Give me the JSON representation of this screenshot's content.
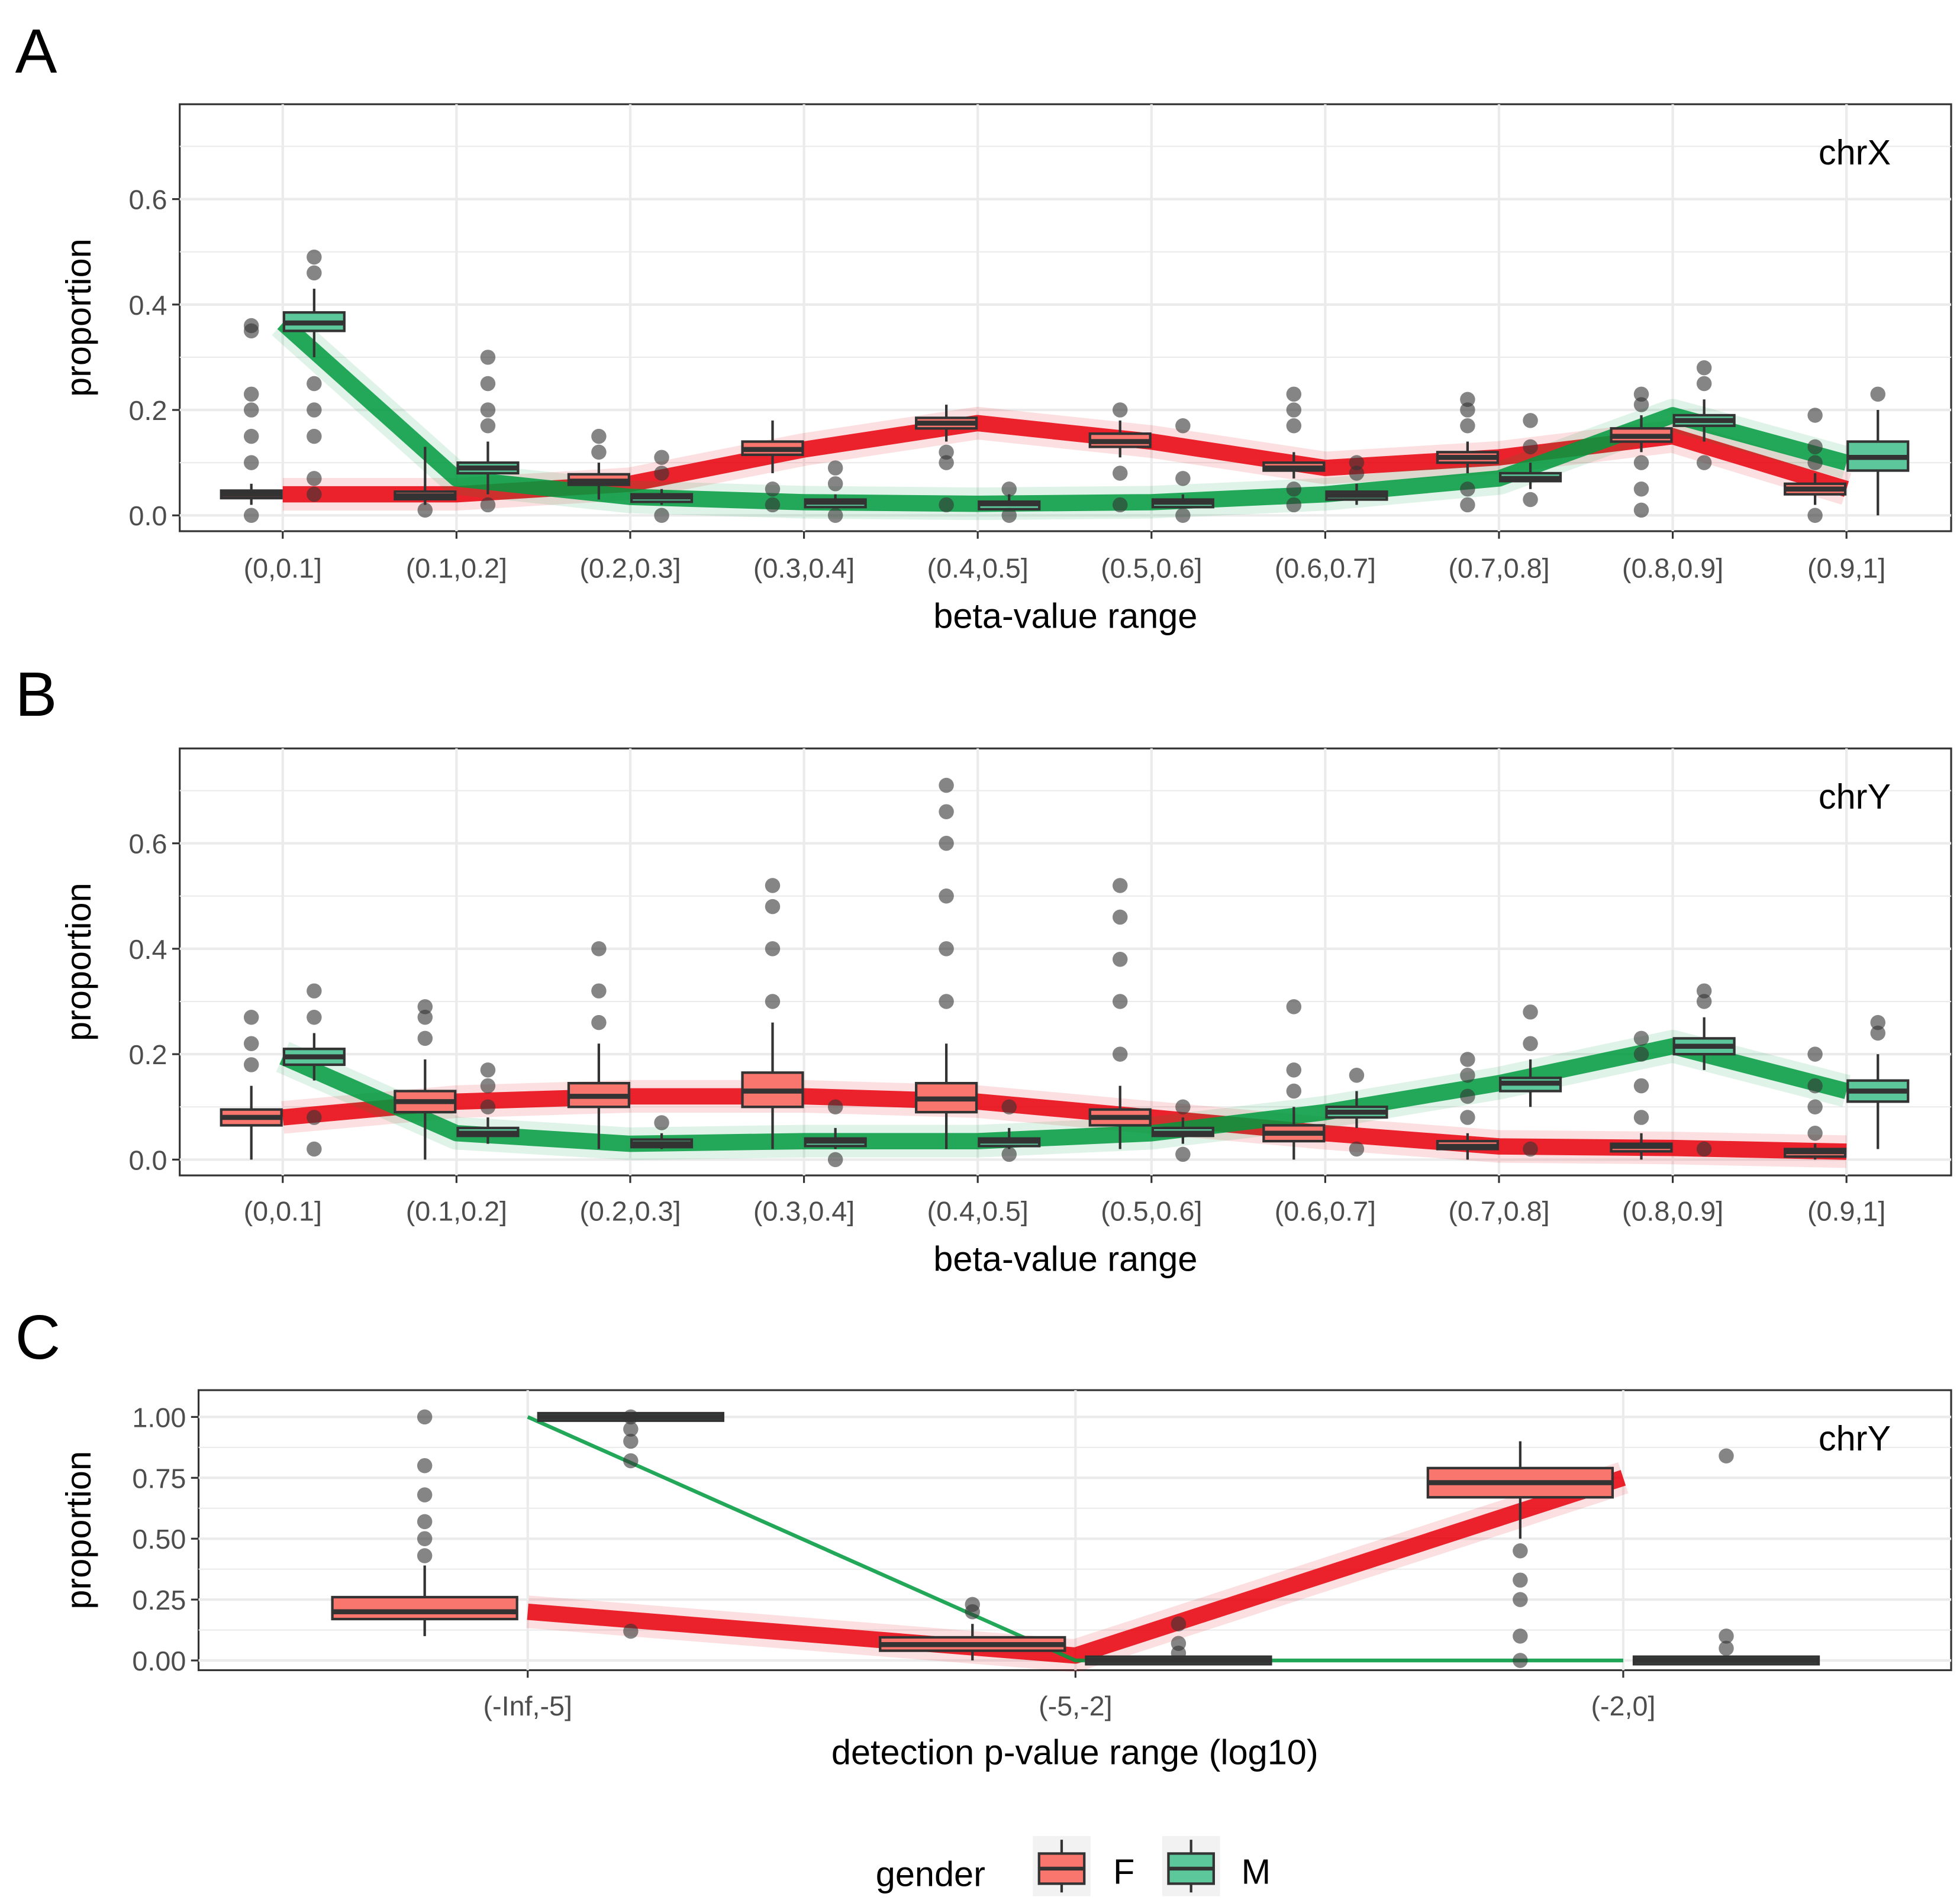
{
  "legend": {
    "title": "gender",
    "items": [
      {
        "label": "F",
        "color": "#F8766D"
      },
      {
        "label": "M",
        "color": "#3CB77A"
      }
    ]
  },
  "colors": {
    "F_line": "#e8000b",
    "M_line": "#009a3e",
    "box_F": "#F8766D",
    "box_M": "#5BC79A"
  },
  "chart_data": [
    {
      "panel": "A",
      "type": "box+line",
      "label": "chrX",
      "xlabel": "beta-value range",
      "ylabel": "proportion",
      "ylim": [
        -0.03,
        0.78
      ],
      "yticks": [
        "0.0",
        "0.2",
        "0.4",
        "0.6"
      ],
      "ytick_values": [
        0,
        0.2,
        0.4,
        0.6
      ],
      "categories": [
        "(0,0.1]",
        "(0.1,0.2]",
        "(0.2,0.3]",
        "(0.3,0.4]",
        "(0.4,0.5]",
        "(0.5,0.6]",
        "(0.6,0.7]",
        "(0.7,0.8]",
        "(0.8,0.9]",
        "(0.9,1]"
      ],
      "series": [
        {
          "name": "F",
          "boxes": [
            [
              0.02,
              0.035,
              0.04,
              0.047,
              0.06
            ],
            [
              0.02,
              0.032,
              0.037,
              0.045,
              0.13
            ],
            [
              0.03,
              0.058,
              0.065,
              0.078,
              0.1
            ],
            [
              0.08,
              0.115,
              0.125,
              0.14,
              0.18
            ],
            [
              0.14,
              0.165,
              0.175,
              0.185,
              0.21
            ],
            [
              0.11,
              0.13,
              0.14,
              0.155,
              0.18
            ],
            [
              0.07,
              0.085,
              0.09,
              0.1,
              0.12
            ],
            [
              0.08,
              0.1,
              0.11,
              0.12,
              0.14
            ],
            [
              0.12,
              0.14,
              0.15,
              0.165,
              0.19
            ],
            [
              0.02,
              0.04,
              0.05,
              0.06,
              0.08
            ]
          ],
          "outliers": [
            [
              0.0,
              0.1,
              0.15,
              0.2,
              0.23,
              0.35,
              0.36
            ],
            [
              0.01
            ],
            [
              0.12,
              0.15
            ],
            [
              0.02,
              0.05
            ],
            [
              0.02,
              0.1,
              0.12
            ],
            [
              0.02,
              0.08,
              0.2
            ],
            [
              0.02,
              0.05,
              0.17,
              0.2,
              0.23
            ],
            [
              0.02,
              0.05,
              0.17,
              0.2,
              0.22
            ],
            [
              0.01,
              0.05,
              0.1,
              0.21,
              0.23
            ],
            [
              0.0,
              0.1,
              0.13,
              0.19
            ]
          ],
          "line": [
            0.04,
            0.04,
            0.06,
            0.125,
            0.175,
            0.14,
            0.09,
            0.11,
            0.15,
            0.05
          ]
        },
        {
          "name": "M",
          "boxes": [
            [
              0.3,
              0.35,
              0.365,
              0.385,
              0.43
            ],
            [
              0.04,
              0.08,
              0.09,
              0.1,
              0.14
            ],
            [
              0.02,
              0.03,
              0.035,
              0.04,
              0.05
            ],
            [
              0.015,
              0.02,
              0.025,
              0.03,
              0.04
            ],
            [
              0.015,
              0.02,
              0.022,
              0.026,
              0.04
            ],
            [
              0.015,
              0.02,
              0.025,
              0.03,
              0.04
            ],
            [
              0.02,
              0.03,
              0.038,
              0.045,
              0.06
            ],
            [
              0.05,
              0.065,
              0.07,
              0.08,
              0.1
            ],
            [
              0.14,
              0.17,
              0.18,
              0.19,
              0.22
            ],
            [
              0.0,
              0.085,
              0.11,
              0.14,
              0.2
            ]
          ],
          "outliers": [
            [
              0.04,
              0.07,
              0.15,
              0.2,
              0.25,
              0.46,
              0.49
            ],
            [
              0.02,
              0.17,
              0.2,
              0.25,
              0.3
            ],
            [
              0.0,
              0.08,
              0.11
            ],
            [
              0.0,
              0.06,
              0.09
            ],
            [
              0.0,
              0.05
            ],
            [
              0.0,
              0.07,
              0.17
            ],
            [
              0.08,
              0.1
            ],
            [
              0.03,
              0.13,
              0.18
            ],
            [
              0.1,
              0.25,
              0.28
            ],
            [
              0.23
            ]
          ],
          "line": [
            0.365,
            0.07,
            0.035,
            0.025,
            0.022,
            0.025,
            0.04,
            0.07,
            0.19,
            0.1
          ]
        }
      ]
    },
    {
      "panel": "B",
      "type": "box+line",
      "label": "chrY",
      "xlabel": "beta-value range",
      "ylabel": "proportion",
      "ylim": [
        -0.03,
        0.78
      ],
      "yticks": [
        "0.0",
        "0.2",
        "0.4",
        "0.6"
      ],
      "ytick_values": [
        0,
        0.2,
        0.4,
        0.6
      ],
      "categories": [
        "(0,0.1]",
        "(0.1,0.2]",
        "(0.2,0.3]",
        "(0.3,0.4]",
        "(0.4,0.5]",
        "(0.5,0.6]",
        "(0.6,0.7]",
        "(0.7,0.8]",
        "(0.8,0.9]",
        "(0.9,1]"
      ],
      "series": [
        {
          "name": "F",
          "boxes": [
            [
              0.0,
              0.065,
              0.08,
              0.095,
              0.14
            ],
            [
              0.0,
              0.09,
              0.11,
              0.13,
              0.19
            ],
            [
              0.02,
              0.1,
              0.12,
              0.145,
              0.22
            ],
            [
              0.02,
              0.1,
              0.13,
              0.165,
              0.26
            ],
            [
              0.02,
              0.09,
              0.115,
              0.145,
              0.22
            ],
            [
              0.02,
              0.065,
              0.08,
              0.095,
              0.14
            ],
            [
              0.0,
              0.035,
              0.05,
              0.065,
              0.1
            ],
            [
              0.0,
              0.02,
              0.025,
              0.035,
              0.05
            ],
            [
              0.0,
              0.02,
              0.025,
              0.03,
              0.05
            ],
            [
              0.0,
              0.01,
              0.015,
              0.02,
              0.03
            ]
          ],
          "outliers": [
            [
              0.18,
              0.22,
              0.27
            ],
            [
              0.23,
              0.27,
              0.29
            ],
            [
              0.26,
              0.32,
              0.4
            ],
            [
              0.3,
              0.4,
              0.48,
              0.52
            ],
            [
              0.3,
              0.4,
              0.5,
              0.6,
              0.66,
              0.71
            ],
            [
              0.2,
              0.3,
              0.38,
              0.46,
              0.52
            ],
            [
              0.13,
              0.17,
              0.29
            ],
            [
              0.08,
              0.12,
              0.16,
              0.19
            ],
            [
              0.08,
              0.14,
              0.2,
              0.23
            ],
            [
              0.05,
              0.1,
              0.14,
              0.2
            ]
          ],
          "line": [
            0.08,
            0.11,
            0.12,
            0.12,
            0.11,
            0.08,
            0.05,
            0.025,
            0.022,
            0.015
          ]
        },
        {
          "name": "M",
          "boxes": [
            [
              0.15,
              0.18,
              0.195,
              0.21,
              0.24
            ],
            [
              0.03,
              0.045,
              0.05,
              0.06,
              0.08
            ],
            [
              0.02,
              0.028,
              0.03,
              0.038,
              0.05
            ],
            [
              0.02,
              0.03,
              0.035,
              0.04,
              0.06
            ],
            [
              0.02,
              0.03,
              0.035,
              0.04,
              0.06
            ],
            [
              0.03,
              0.045,
              0.05,
              0.06,
              0.08
            ],
            [
              0.06,
              0.08,
              0.09,
              0.1,
              0.13
            ],
            [
              0.1,
              0.13,
              0.145,
              0.155,
              0.19
            ],
            [
              0.17,
              0.2,
              0.215,
              0.23,
              0.27
            ],
            [
              0.02,
              0.11,
              0.13,
              0.15,
              0.2
            ]
          ],
          "outliers": [
            [
              0.02,
              0.08,
              0.27,
              0.32
            ],
            [
              0.1,
              0.14,
              0.17
            ],
            [
              0.07
            ],
            [
              0.0,
              0.1
            ],
            [
              0.01,
              0.1
            ],
            [
              0.01,
              0.1
            ],
            [
              0.02,
              0.16
            ],
            [
              0.02,
              0.22,
              0.28
            ],
            [
              0.02,
              0.3,
              0.32
            ],
            [
              0.24,
              0.26
            ]
          ],
          "line": [
            0.195,
            0.05,
            0.03,
            0.035,
            0.035,
            0.05,
            0.09,
            0.145,
            0.215,
            0.13
          ]
        }
      ]
    },
    {
      "panel": "C",
      "type": "box+line",
      "label": "chrY",
      "xlabel": "detection p-value range (log10)",
      "ylabel": "proportion",
      "ylim": [
        -0.04,
        1.11
      ],
      "yticks": [
        "0.00",
        "0.25",
        "0.50",
        "0.75",
        "1.00"
      ],
      "ytick_values": [
        0,
        0.25,
        0.5,
        0.75,
        1.0
      ],
      "categories": [
        "(-Inf,-5]",
        "(-5,-2]",
        "(-2,0]"
      ],
      "series": [
        {
          "name": "F",
          "boxes": [
            [
              0.1,
              0.17,
              0.2,
              0.26,
              0.39
            ],
            [
              0.0,
              0.04,
              0.065,
              0.095,
              0.15
            ],
            [
              0.5,
              0.67,
              0.73,
              0.79,
              0.9
            ]
          ],
          "outliers": [
            [
              0.43,
              0.5,
              0.57,
              0.68,
              0.8,
              1.0
            ],
            [
              0.2,
              0.23
            ],
            [
              0.0,
              0.1,
              0.25,
              0.33,
              0.45
            ]
          ],
          "line": [
            0.2,
            0.02,
            0.75
          ]
        },
        {
          "name": "M",
          "boxes": [
            [
              1,
              1,
              1,
              1,
              1
            ],
            [
              0,
              0,
              0,
              0,
              0
            ],
            [
              0,
              0,
              0,
              0,
              0
            ]
          ],
          "outliers": [
            [
              0.12,
              0.82,
              0.9,
              0.95,
              1.0
            ],
            [
              0.03,
              0.07,
              0.15
            ],
            [
              0.05,
              0.1,
              0.84
            ]
          ],
          "line": [
            1.0,
            0.0,
            0.0
          ]
        }
      ]
    }
  ]
}
